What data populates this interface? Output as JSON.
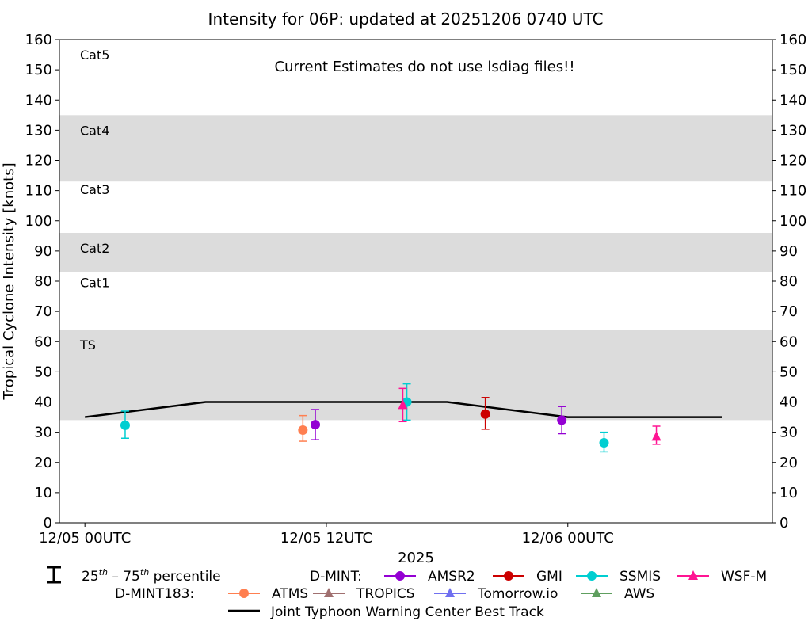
{
  "chart_data": {
    "type": "scatter",
    "title": "Intensity for 06P: updated at 20251206 0740 UTC",
    "annotation": "Current Estimates do not use lsdiag files!!",
    "xlabel": "2025",
    "ylabel": "Tropical Cyclone Intensity [knots]",
    "ylim": [
      0,
      160
    ],
    "yticks": [
      0,
      10,
      20,
      30,
      40,
      50,
      60,
      70,
      80,
      90,
      100,
      110,
      120,
      130,
      140,
      150,
      160
    ],
    "xlim": [
      "2025-12-04 22:44",
      "2025-12-06 10:10"
    ],
    "xticks": [
      {
        "t": "2025-12-05 00:00",
        "label": "12/05 00UTC"
      },
      {
        "t": "2025-12-05 12:00",
        "label": "12/05 12UTC"
      },
      {
        "t": "2025-12-06 00:00",
        "label": "12/06 00UTC"
      }
    ],
    "bands": [
      {
        "label": "TS",
        "from": 34,
        "to": 64,
        "shaded": true
      },
      {
        "label": "Cat1",
        "from": 64,
        "to": 83,
        "shaded": false
      },
      {
        "label": "Cat2",
        "from": 83,
        "to": 96,
        "shaded": true
      },
      {
        "label": "Cat3",
        "from": 96,
        "to": 113,
        "shaded": false
      },
      {
        "label": "Cat4",
        "from": 113,
        "to": 135,
        "shaded": true
      },
      {
        "label": "Cat5",
        "from": 135,
        "to": 160,
        "shaded": false
      }
    ],
    "band_color": "#dcdcdc",
    "best_track": {
      "name": "Joint Typhoon Warning Center Best Track",
      "color": "#000000",
      "points": [
        [
          "2025-12-05 00:00",
          35
        ],
        [
          "2025-12-05 06:00",
          40
        ],
        [
          "2025-12-05 18:00",
          40
        ],
        [
          "2025-12-06 00:00",
          35
        ],
        [
          "2025-12-06 07:40",
          35
        ]
      ]
    },
    "series": [
      {
        "name": "AMSR2",
        "group": "D-MINT",
        "marker": "circle",
        "color": "#9400d3",
        "points": [
          [
            "2025-12-05 11:27",
            32.5,
            27.5,
            37.5
          ],
          [
            "2025-12-05 23:42",
            34,
            29.5,
            38.5
          ]
        ]
      },
      {
        "name": "GMI",
        "group": "D-MINT",
        "marker": "circle",
        "color": "#cc0000",
        "points": [
          [
            "2025-12-05 19:54",
            36,
            31,
            41.5
          ]
        ]
      },
      {
        "name": "SSMIS",
        "group": "D-MINT",
        "marker": "circle",
        "color": "#00ced1",
        "points": [
          [
            "2025-12-05 02:00",
            32.3,
            28,
            37
          ],
          [
            "2025-12-05 16:00",
            40,
            34,
            46
          ],
          [
            "2025-12-06 01:48",
            26.5,
            23.5,
            30
          ]
        ]
      },
      {
        "name": "WSF-M",
        "group": "D-MINT",
        "marker": "triangle",
        "color": "#ff1493",
        "points": [
          [
            "2025-12-05 15:48",
            39,
            33.5,
            44.5
          ],
          [
            "2025-12-06 04:24",
            28.5,
            26,
            32
          ]
        ]
      },
      {
        "name": "ATMS",
        "group": "D-MINT183",
        "marker": "circle",
        "color": "#ff7f50",
        "points": [
          [
            "2025-12-05 10:50",
            30.7,
            27,
            35.5
          ]
        ]
      },
      {
        "name": "TROPICS",
        "group": "D-MINT183",
        "marker": "triangle",
        "color": "#a07070",
        "points": []
      },
      {
        "name": "Tomorrow.io",
        "group": "D-MINT183",
        "marker": "triangle",
        "color": "#7070f0",
        "points": []
      },
      {
        "name": "AWS",
        "group": "D-MINT183",
        "marker": "triangle",
        "color": "#5f9f5f",
        "points": []
      }
    ],
    "legend": {
      "placement": "bottom",
      "percentile": "25th – 75th percentile",
      "group1": "D-MINT:",
      "group2": "D-MINT183:"
    }
  }
}
